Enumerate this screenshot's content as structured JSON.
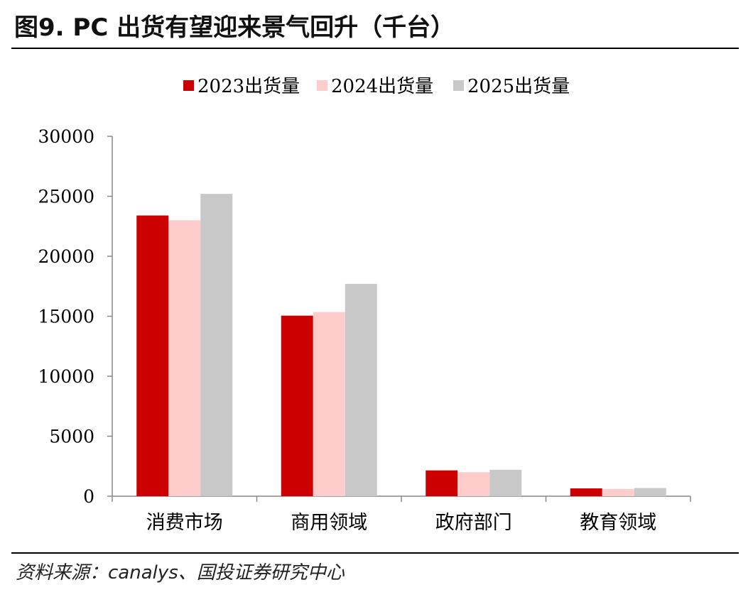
{
  "title": "图9. PC 出货有望迎来景气回升（千台）",
  "source": "资料来源：canalys、国投证券研究中心",
  "chart_data": {
    "type": "bar",
    "title": "PC 出货有望迎来景气回升（千台）",
    "categories": [
      "消费市场",
      "商用领域",
      "政府部门",
      "教育领域"
    ],
    "series": [
      {
        "name": "2023出货量",
        "color": "#CC0000",
        "values": [
          23400,
          15050,
          2150,
          650
        ]
      },
      {
        "name": "2024出货量",
        "color": "#FFCCCC",
        "values": [
          23000,
          15350,
          2000,
          600
        ]
      },
      {
        "name": "2025出货量",
        "color": "#C8C8C8",
        "values": [
          25200,
          17700,
          2200,
          680
        ]
      }
    ],
    "yticks": [
      "0",
      "5000",
      "10000",
      "15000",
      "20000",
      "25000",
      "30000"
    ],
    "ylim": [
      0,
      30000
    ],
    "grid": false,
    "legend_position": "top-center"
  }
}
